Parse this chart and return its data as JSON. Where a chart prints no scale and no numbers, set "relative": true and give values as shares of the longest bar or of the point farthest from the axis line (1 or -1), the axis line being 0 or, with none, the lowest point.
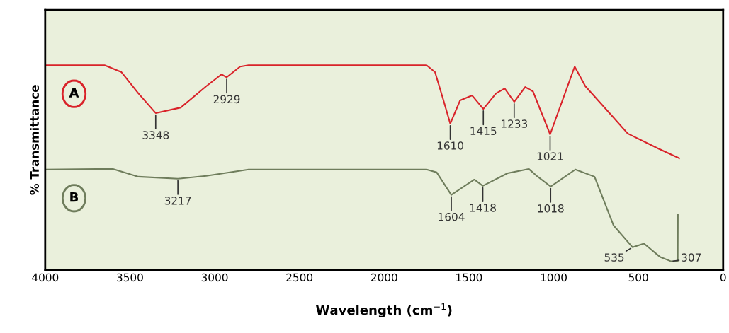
{
  "chart_data": {
    "type": "line",
    "relative": true,
    "xlabel": "Wavelength (cm$^{−1}$)",
    "ylabel": "% Transmittance",
    "xlim": [
      4000,
      0
    ],
    "xticks": [
      4000,
      3500,
      3000,
      2500,
      2000,
      1500,
      1000,
      500,
      0
    ],
    "grid": false,
    "legend": false,
    "marker": "none",
    "line_style": "solid",
    "series": [
      {
        "name": "A",
        "color": "#d9232a",
        "x": [
          4000,
          3650,
          3550,
          3450,
          3348,
          3200,
          3050,
          2960,
          2929,
          2850,
          2800,
          1750,
          1700,
          1650,
          1610,
          1552,
          1481,
          1415,
          1340,
          1289,
          1233,
          1168,
          1122,
          1021,
          876,
          813,
          663,
          563,
          384,
          259
        ],
        "values": [
          1.0,
          1.0,
          0.966,
          0.862,
          0.766,
          0.793,
          0.897,
          0.955,
          0.941,
          0.993,
          1.0,
          1.0,
          0.966,
          0.828,
          0.714,
          0.828,
          0.852,
          0.786,
          0.862,
          0.886,
          0.821,
          0.893,
          0.872,
          0.662,
          0.993,
          0.897,
          0.759,
          0.666,
          0.593,
          0.545
        ]
      },
      {
        "name": "B",
        "color": "#6f7d5c",
        "x": [
          4000,
          3600,
          3450,
          3217,
          3050,
          2800,
          1750,
          1690,
          1604,
          1468,
          1418,
          1272,
          1147,
          1100,
          1018,
          872,
          759,
          647,
          535,
          467,
          371,
          307,
          268,
          267
        ],
        "values": [
          0.49,
          0.493,
          0.455,
          0.445,
          0.459,
          0.49,
          0.49,
          0.476,
          0.366,
          0.441,
          0.41,
          0.472,
          0.493,
          0.459,
          0.407,
          0.49,
          0.455,
          0.217,
          0.11,
          0.128,
          0.062,
          0.041,
          0.041,
          0.269
        ]
      }
    ],
    "annotations": [
      {
        "text": "3348",
        "x": 3348,
        "y": 0.766
      },
      {
        "text": "2929",
        "x": 2929,
        "y": 0.941
      },
      {
        "text": "1610",
        "x": 1610,
        "y": 0.714
      },
      {
        "text": "1415",
        "x": 1415,
        "y": 0.786
      },
      {
        "text": "1233",
        "x": 1233,
        "y": 0.821
      },
      {
        "text": "1021",
        "x": 1021,
        "y": 0.662
      },
      {
        "text": "3217",
        "x": 3217,
        "y": 0.445
      },
      {
        "text": "1604",
        "x": 1604,
        "y": 0.366
      },
      {
        "text": "1418",
        "x": 1418,
        "y": 0.41
      },
      {
        "text": "1018",
        "x": 1018,
        "y": 0.407
      },
      {
        "text": "535",
        "x": 535,
        "y": 0.11
      },
      {
        "text": "307",
        "x": 307,
        "y": 0.041
      }
    ]
  }
}
